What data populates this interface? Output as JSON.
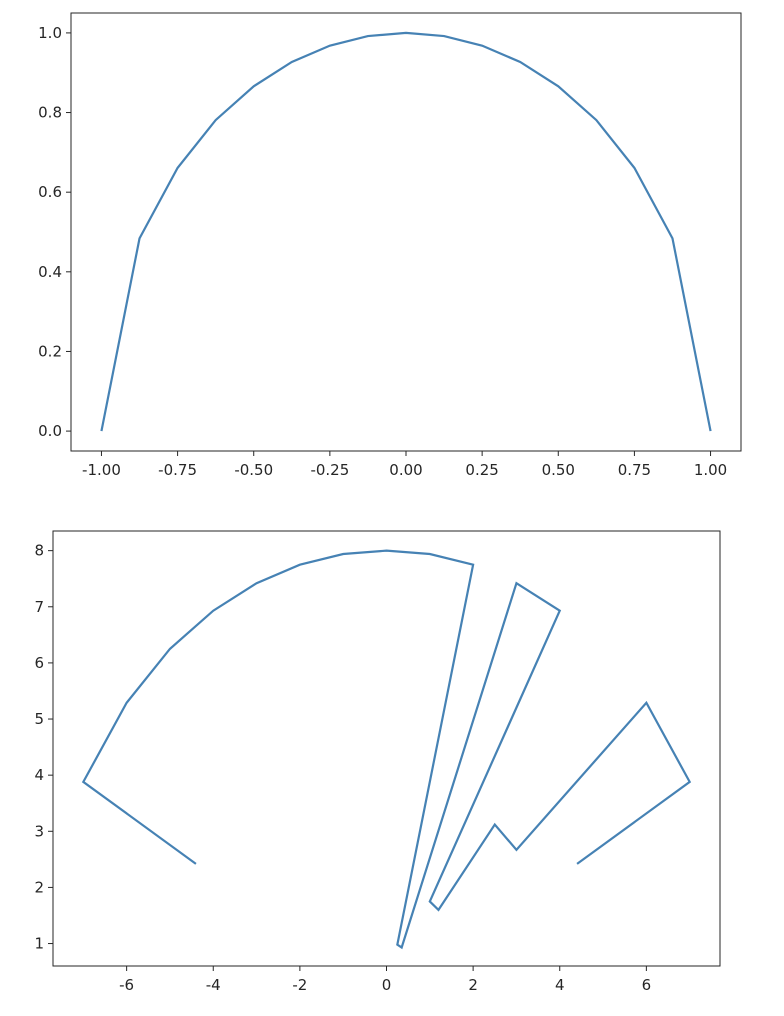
{
  "chart_data": [
    {
      "type": "line",
      "title": "",
      "xlabel": "",
      "ylabel": "",
      "xlim": [
        -1.1,
        1.1
      ],
      "ylim": [
        -0.05,
        1.05
      ],
      "grid": false,
      "x_ticks": [
        -1.0,
        -0.75,
        -0.5,
        -0.25,
        0.0,
        0.25,
        0.5,
        0.75,
        1.0
      ],
      "x_tick_labels": [
        "-1.00",
        "-0.75",
        "-0.50",
        "-0.25",
        "0.00",
        "0.25",
        "0.50",
        "0.75",
        "1.00"
      ],
      "y_ticks": [
        0.0,
        0.2,
        0.4,
        0.6,
        0.8,
        1.0
      ],
      "y_tick_labels": [
        "0.0",
        "0.2",
        "0.4",
        "0.6",
        "0.8",
        "1.0"
      ],
      "series": [
        {
          "color": "#4682b4",
          "x": [
            -1.0,
            -0.875,
            -0.75,
            -0.625,
            -0.5,
            -0.375,
            -0.25,
            -0.125,
            0.0,
            0.125,
            0.25,
            0.375,
            0.5,
            0.625,
            0.75,
            0.875,
            1.0
          ],
          "y": [
            0.0,
            0.484,
            0.661,
            0.781,
            0.866,
            0.927,
            0.968,
            0.992,
            1.0,
            0.992,
            0.968,
            0.927,
            0.866,
            0.781,
            0.661,
            0.484,
            0.0
          ]
        }
      ]
    },
    {
      "type": "line",
      "title": "",
      "xlabel": "",
      "ylabel": "",
      "xlim": [
        -7.7,
        7.7
      ],
      "ylim": [
        0.6,
        8.35
      ],
      "grid": false,
      "x_ticks": [
        -6,
        -4,
        -2,
        0,
        2,
        4,
        6
      ],
      "x_tick_labels": [
        "-6",
        "-4",
        "-2",
        "0",
        "2",
        "4",
        "6"
      ],
      "y_ticks": [
        1,
        2,
        3,
        4,
        5,
        6,
        7,
        8
      ],
      "y_tick_labels": [
        "1",
        "2",
        "3",
        "4",
        "5",
        "6",
        "7",
        "8"
      ],
      "series": [
        {
          "color": "#4682b4",
          "x": [
            -4.4,
            -7.0,
            -6.0,
            -5.0,
            -4.0,
            -3.0,
            -2.0,
            -1.0,
            0.0,
            1.0,
            2.0,
            0.25,
            0.35,
            3.0,
            4.0,
            1.0,
            1.2,
            2.5,
            3.0,
            6.0,
            7.0,
            4.4
          ],
          "y": [
            2.42,
            3.88,
            5.29,
            6.25,
            6.93,
            7.42,
            7.75,
            7.94,
            8.0,
            7.94,
            7.75,
            0.98,
            0.93,
            7.42,
            6.93,
            1.75,
            1.6,
            3.12,
            2.67,
            5.29,
            3.88,
            2.42
          ]
        }
      ]
    }
  ]
}
